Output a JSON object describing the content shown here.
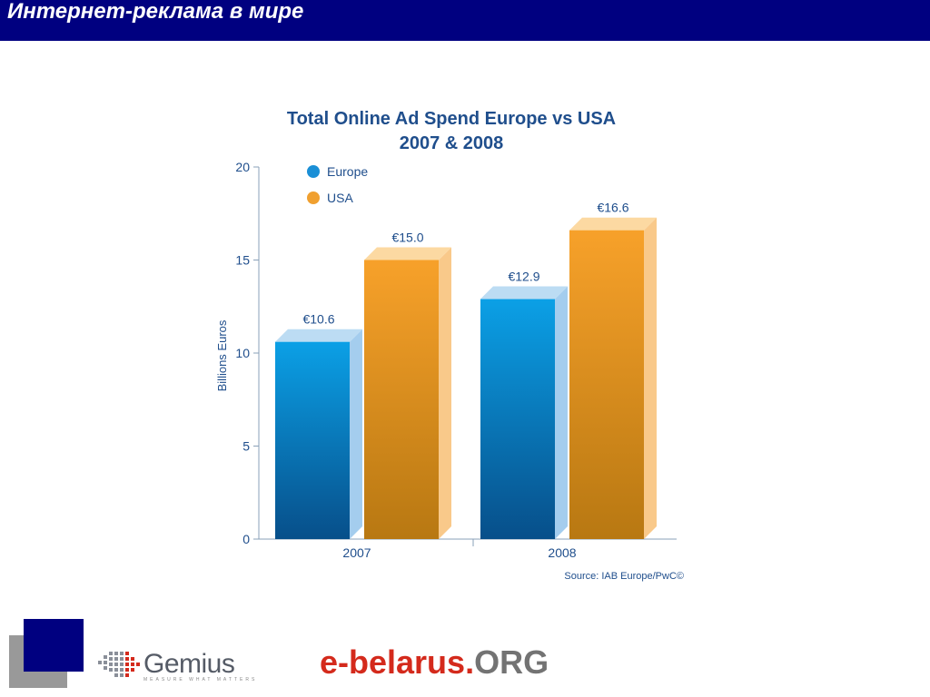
{
  "slide": {
    "title": "Интернет-реклама в мире"
  },
  "chart_data": {
    "type": "bar",
    "title": "Total Online Ad Spend Europe vs USA",
    "subtitle": "2007 & 2008",
    "ylabel": "Billions Euros",
    "xlabel": "",
    "categories": [
      "2007",
      "2008"
    ],
    "ylim": [
      0,
      20
    ],
    "yticks": [
      0,
      5,
      10,
      15,
      20
    ],
    "series": [
      {
        "name": "Europe",
        "values": [
          10.6,
          12.9
        ],
        "labels": [
          "€10.6",
          "€12.9"
        ],
        "color": "#1a8fd6"
      },
      {
        "name": "USA",
        "values": [
          15.0,
          16.6
        ],
        "labels": [
          "€15.0",
          "€16.6"
        ],
        "color": "#f0a030"
      }
    ],
    "legend": "top-left",
    "grid": false,
    "source": "Source: IAB Europe/PwC©"
  },
  "footer": {
    "gemius_text": "Gemius",
    "gemius_tagline": "MEASURE WHAT MATTERS",
    "ebelarus_prefix": "e-belarus.",
    "ebelarus_suffix": "ORG"
  }
}
